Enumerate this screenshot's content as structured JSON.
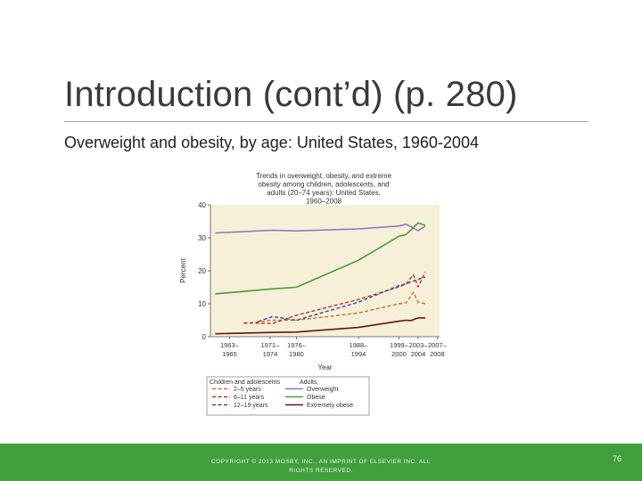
{
  "slide": {
    "title": "Introduction (cont’d) (p. 280)",
    "subtitle": "Overweight and obesity, by age: United States, 1960-2004",
    "footer": "COPYRIGHT © 2013 MOSBY, INC., AN IMPRINT OF ELSEVIER INC. ALL RIGHTS RESERVED.",
    "page_number": "76"
  },
  "chart_data": {
    "type": "line",
    "title": "Trends in overweight, obesity, and extreme obesity among children, adolescents, and adults (20–74 years): United States, 1960–2008",
    "xlabel": "Year",
    "ylabel": "Percent",
    "ylim": [
      0,
      40
    ],
    "yticks": [
      "0",
      "10",
      "20",
      "30",
      "40"
    ],
    "xticks": [
      {
        "line1": "1963–",
        "line2": "1965"
      },
      {
        "line1": "1971–",
        "line2": "1974"
      },
      {
        "line1": "1976–",
        "line2": "1980"
      },
      {
        "line1": "1988–",
        "line2": "1994"
      },
      {
        "line1": "1999–",
        "line2": "2000"
      },
      {
        "line1": "2003–",
        "line2": "2004"
      },
      {
        "line1": "2007–",
        "line2": "2008"
      }
    ],
    "legend": {
      "position": "bottom",
      "group_children": "Children and adolescents",
      "group_adults": "Adults"
    },
    "colors": {
      "plot_background": "#f6f0d8",
      "overweight": "#8a78c8",
      "obese": "#4f9a3a",
      "extremely_obese": "#6a1010",
      "age_2_5": "#d06a2a",
      "age_6_11": "#c03030",
      "age_12_19": "#3a4aa0"
    },
    "series": [
      {
        "name": "Overweight",
        "group": "adults",
        "style": "solid",
        "color_key": "overweight",
        "points": [
          [
            1961,
            31.5
          ],
          [
            1973,
            32.3
          ],
          [
            1978,
            32.1
          ],
          [
            1991,
            32.7
          ],
          [
            1999.5,
            33.6
          ],
          [
            2001,
            34.1
          ],
          [
            2002.5,
            33.0
          ],
          [
            2003.5,
            32.2
          ],
          [
            2005,
            33.5
          ]
        ]
      },
      {
        "name": "Obese",
        "group": "adults",
        "style": "solid",
        "color_key": "obese",
        "points": [
          [
            1961,
            13.0
          ],
          [
            1973,
            14.5
          ],
          [
            1978,
            15.0
          ],
          [
            1991,
            23.2
          ],
          [
            1999.5,
            30.5
          ],
          [
            2001,
            31.0
          ],
          [
            2003.5,
            34.5
          ],
          [
            2005,
            33.8
          ]
        ]
      },
      {
        "name": "Extremely obese",
        "group": "adults",
        "style": "solid",
        "color_key": "extremely_obese",
        "points": [
          [
            1961,
            0.9
          ],
          [
            1973,
            1.3
          ],
          [
            1978,
            1.4
          ],
          [
            1991,
            2.8
          ],
          [
            1999.5,
            4.7
          ],
          [
            2001,
            5.0
          ],
          [
            2002,
            4.9
          ],
          [
            2003.5,
            5.7
          ],
          [
            2005,
            5.7
          ]
        ]
      },
      {
        "name": "2–5 years",
        "group": "children",
        "style": "dashed",
        "color_key": "age_2_5",
        "points": [
          [
            1967,
            4.0
          ],
          [
            1973,
            5.0
          ],
          [
            1978,
            5.0
          ],
          [
            1991,
            7.2
          ],
          [
            1999.5,
            10.0
          ],
          [
            2001,
            10.3
          ],
          [
            2002.5,
            13.5
          ],
          [
            2003.5,
            10.5
          ],
          [
            2005,
            10.0
          ]
        ]
      },
      {
        "name": "6–11 years",
        "group": "children",
        "style": "dashed",
        "color_key": "age_6_11",
        "points": [
          [
            1967,
            4.2
          ],
          [
            1973,
            4.0
          ],
          [
            1978,
            6.5
          ],
          [
            1991,
            11.3
          ],
          [
            1999.5,
            15.1
          ],
          [
            2001,
            16.0
          ],
          [
            2002.5,
            18.8
          ],
          [
            2003.5,
            15.1
          ],
          [
            2005,
            19.6
          ]
        ]
      },
      {
        "name": "12–19 years",
        "group": "children",
        "style": "dashed",
        "color_key": "age_12_19",
        "points": [
          [
            1970,
            4.6
          ],
          [
            1973,
            6.1
          ],
          [
            1978,
            5.0
          ],
          [
            1991,
            10.5
          ],
          [
            1999.5,
            15.5
          ],
          [
            2001,
            16.1
          ],
          [
            2003.5,
            17.4
          ],
          [
            2005,
            18.1
          ]
        ]
      }
    ]
  }
}
